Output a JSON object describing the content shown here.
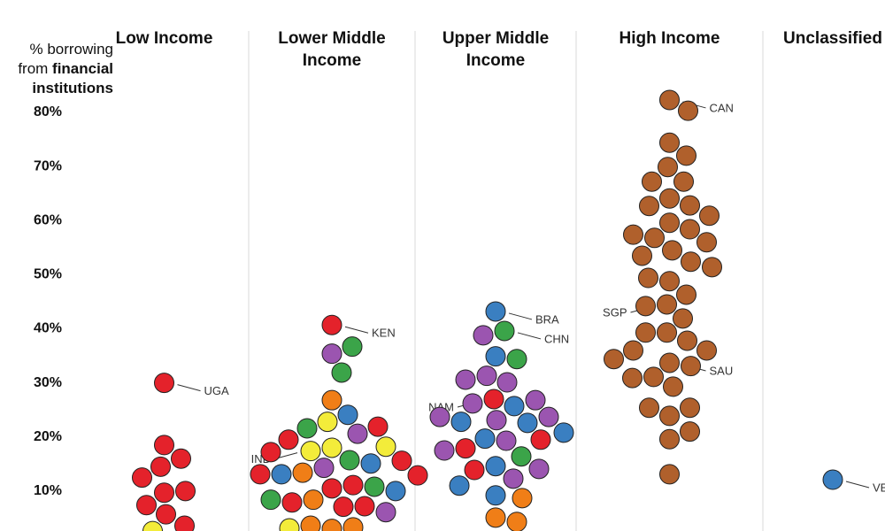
{
  "chart_data": {
    "type": "beeswarm",
    "ylabel": [
      {
        "text": "% borrowing",
        "bold": false
      },
      {
        "text": "from",
        "bold": false
      },
      {
        "text": "financial",
        "bold": true
      },
      {
        "text": "institutions",
        "bold": true
      }
    ],
    "ylim": [
      0,
      80
    ],
    "yticks": [
      {
        "value": 10,
        "label": "10%"
      },
      {
        "value": 20,
        "label": "20%"
      },
      {
        "value": 30,
        "label": "30%"
      },
      {
        "value": 40,
        "label": "40%"
      },
      {
        "value": 50,
        "label": "50%"
      },
      {
        "value": 60,
        "label": "60%"
      },
      {
        "value": 70,
        "label": "70%"
      },
      {
        "value": 80,
        "label": "80%"
      }
    ],
    "series": [
      {
        "name": "Low Income",
        "values": [
          30,
          18.5,
          16,
          14.5,
          12.5,
          9.7,
          10,
          7.4,
          5.7,
          3.6,
          2.6
        ],
        "colors": [
          "#e4222b",
          "#e4222b",
          "#e4222b",
          "#e4222b",
          "#e4222b",
          "#e4222b",
          "#e4222b",
          "#e4222b",
          "#e4222b",
          "#e4222b",
          "#f3ec3a"
        ],
        "labels": [
          "UGA",
          null,
          null,
          null,
          null,
          null,
          null,
          null,
          null,
          null,
          null
        ]
      },
      {
        "name": "Lower Middle Income",
        "values": [
          40.7,
          35.4,
          36.7,
          31.9,
          26.8,
          24.1,
          22.8,
          21.6,
          20.6,
          21.9,
          19.5,
          18,
          18.2,
          17.4,
          15.7,
          15.1,
          17.2,
          14.3,
          13.4,
          13.1,
          15.6,
          13.1,
          12.9,
          10.5,
          11.1,
          10.8,
          10,
          8.4,
          7.9,
          8.4,
          7.1,
          7.2,
          6.1,
          3,
          3.3,
          3.6,
          3.1
        ],
        "colors": [
          "#e4222b",
          "#9b55b0",
          "#3ba449",
          "#3ba449",
          "#f07e17",
          "#3a7fc1",
          "#f3ec3a",
          "#3ba449",
          "#9b55b0",
          "#e4222b",
          "#e4222b",
          "#f3ec3a",
          "#f3ec3a",
          "#f3ec3a",
          "#3ba449",
          "#3a7fc1",
          "#e4222b",
          "#9b55b0",
          "#f07e17",
          "#3a7fc1",
          "#e4222b",
          "#e4222b",
          "#e4222b",
          "#e4222b",
          "#e4222b",
          "#3ba449",
          "#3a7fc1",
          "#f07e17",
          "#e4222b",
          "#3ba449",
          "#e4222b",
          "#e4222b",
          "#9b55b0",
          "#f07e17",
          "#f07e17",
          "#f07e17",
          "#f3ec3a"
        ],
        "labels": [
          "KEN",
          null,
          null,
          null,
          null,
          null,
          null,
          null,
          null,
          null,
          null,
          null,
          null,
          "IND",
          null,
          null,
          null,
          null,
          null,
          null,
          null,
          null,
          null,
          null,
          null,
          null,
          null,
          null,
          null,
          null,
          null,
          null,
          null,
          null,
          null,
          null,
          null
        ]
      },
      {
        "name": "Upper Middle Income",
        "values": [
          43.2,
          39.6,
          38.8,
          34.9,
          34.4,
          31.3,
          30.1,
          30.6,
          27,
          25.7,
          26.2,
          26.8,
          23.1,
          22.6,
          22.8,
          23.7,
          23.7,
          20.8,
          19.7,
          19.3,
          19.5,
          17.9,
          17.5,
          14.6,
          16.4,
          13.9,
          14.1,
          12.3,
          11,
          9.2,
          8.7,
          5.1,
          4.3
        ],
        "colors": [
          "#3a7fc1",
          "#3ba449",
          "#9b55b0",
          "#3a7fc1",
          "#3ba449",
          "#9b55b0",
          "#9b55b0",
          "#9b55b0",
          "#e4222b",
          "#3a7fc1",
          "#9b55b0",
          "#9b55b0",
          "#9b55b0",
          "#3a7fc1",
          "#3a7fc1",
          "#9b55b0",
          "#9b55b0",
          "#3a7fc1",
          "#3a7fc1",
          "#9b55b0",
          "#e4222b",
          "#e4222b",
          "#9b55b0",
          "#3a7fc1",
          "#3ba449",
          "#e4222b",
          "#9b55b0",
          "#9b55b0",
          "#3a7fc1",
          "#3a7fc1",
          "#f07e17",
          "#f07e17",
          "#f07e17"
        ],
        "labels": [
          "BRA",
          "CHN",
          null,
          null,
          null,
          null,
          null,
          null,
          "NAM",
          null,
          null,
          null,
          null,
          null,
          null,
          null,
          null,
          null,
          null,
          null,
          null,
          null,
          null,
          null,
          null,
          null,
          null,
          null,
          null,
          null,
          null,
          null,
          null
        ]
      },
      {
        "name": "High Income",
        "values": [
          82.3,
          80.3,
          74.4,
          72,
          69.9,
          67.2,
          67.2,
          64.1,
          62.8,
          62.7,
          60.9,
          59.6,
          58.4,
          56.8,
          57.4,
          56,
          54.5,
          53.5,
          52.4,
          51.4,
          48.8,
          49.4,
          46.3,
          44.5,
          44.2,
          41.9,
          39.3,
          39.3,
          37.8,
          33.7,
          36,
          36,
          34.4,
          33.1,
          31.1,
          30.9,
          29.3,
          23.9,
          25.4,
          25.4,
          19.6,
          21,
          13.1
        ],
        "colors": [
          "#b0602c",
          "#b0602c",
          "#b0602c",
          "#b0602c",
          "#b0602c",
          "#b0602c",
          "#b0602c",
          "#b0602c",
          "#b0602c",
          "#b0602c",
          "#b0602c",
          "#b0602c",
          "#b0602c",
          "#b0602c",
          "#b0602c",
          "#b0602c",
          "#b0602c",
          "#b0602c",
          "#b0602c",
          "#b0602c",
          "#b0602c",
          "#b0602c",
          "#b0602c",
          "#b0602c",
          "#b0602c",
          "#b0602c",
          "#b0602c",
          "#b0602c",
          "#b0602c",
          "#b0602c",
          "#b0602c",
          "#b0602c",
          "#b0602c",
          "#b0602c",
          "#b0602c",
          "#b0602c",
          "#b0602c",
          "#b0602c",
          "#b0602c",
          "#b0602c",
          "#b0602c",
          "#b0602c",
          "#b0602c"
        ],
        "labels": [
          "CAN",
          null,
          null,
          null,
          null,
          null,
          null,
          null,
          null,
          null,
          null,
          null,
          null,
          null,
          null,
          null,
          null,
          null,
          null,
          null,
          null,
          null,
          null,
          "SGP",
          null,
          null,
          null,
          null,
          null,
          "SAU",
          null,
          null,
          null,
          null,
          null,
          null,
          null,
          null,
          null,
          null,
          null,
          null,
          null
        ]
      },
      {
        "name": "Unclassified",
        "values": [
          12.1
        ],
        "colors": [
          "#3a7fc1"
        ],
        "labels": [
          "VE"
        ]
      }
    ]
  }
}
